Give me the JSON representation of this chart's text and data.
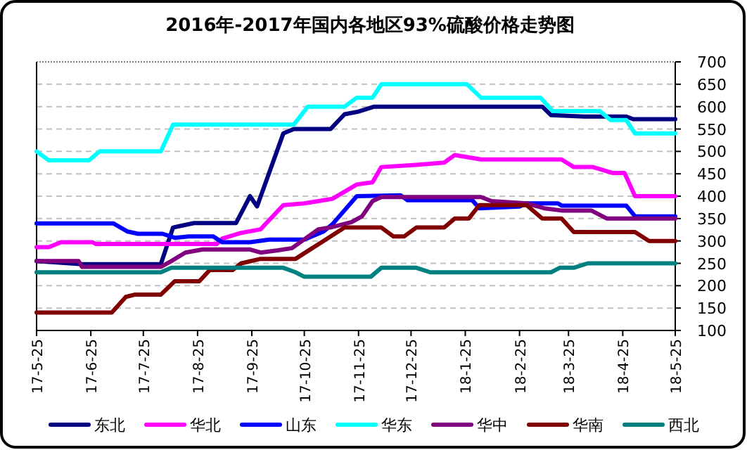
{
  "chart_data": {
    "type": "line",
    "title": "2016年-2017年国内各地区93%硫酸价格走势图",
    "xlim": [
      "2017-05-25",
      "2018-05-25"
    ],
    "xticks": [
      {
        "value": "2017-05-25",
        "label": "17-5-25"
      },
      {
        "value": "2017-06-25",
        "label": "17-6-25"
      },
      {
        "value": "2017-07-25",
        "label": "17-7-25"
      },
      {
        "value": "2017-08-25",
        "label": "17-8-25"
      },
      {
        "value": "2017-09-25",
        "label": "17-9-25"
      },
      {
        "value": "2017-10-25",
        "label": "17-10-25"
      },
      {
        "value": "2017-11-25",
        "label": "17-11-25"
      },
      {
        "value": "2017-12-25",
        "label": "17-12-25"
      },
      {
        "value": "2018-01-25",
        "label": "18-1-25"
      },
      {
        "value": "2018-02-25",
        "label": "18-2-25"
      },
      {
        "value": "2018-03-25",
        "label": "18-3-25"
      },
      {
        "value": "2018-04-25",
        "label": "18-4-25"
      },
      {
        "value": "2018-05-25",
        "label": "18-5-25"
      }
    ],
    "ylim": [
      100,
      700
    ],
    "yticks": [
      100,
      150,
      200,
      250,
      300,
      350,
      400,
      450,
      500,
      550,
      600,
      650,
      700
    ],
    "grid": "y",
    "legend": "bottom",
    "marker": "none",
    "line_style": "solid",
    "series": [
      {
        "name": "东北",
        "color": "#000080",
        "x": [
          "2017-05-25",
          "2017-06-20",
          "2017-08-04",
          "2017-08-11",
          "2017-08-23",
          "2017-09-16",
          "2017-09-24",
          "2017-09-28",
          "2017-10-13",
          "2017-10-19",
          "2017-11-09",
          "2017-11-17",
          "2017-11-25",
          "2017-12-04",
          "2018-03-10",
          "2018-03-15",
          "2018-04-03",
          "2018-04-27",
          "2018-05-01",
          "2018-05-25"
        ],
        "values": [
          255,
          248,
          248,
          330,
          340,
          340,
          400,
          377,
          540,
          550,
          550,
          583,
          589,
          600,
          600,
          581,
          578,
          578,
          572,
          572
        ]
      },
      {
        "name": "华北",
        "color": "#ff00ff",
        "x": [
          "2017-05-25",
          "2017-06-01",
          "2017-06-08",
          "2017-06-26",
          "2017-06-28",
          "2017-09-05",
          "2017-09-08",
          "2017-09-19",
          "2017-09-30",
          "2017-10-13",
          "2017-10-25",
          "2017-11-10",
          "2017-11-24",
          "2017-12-03",
          "2017-12-08",
          "2017-12-28",
          "2018-01-13",
          "2018-01-19",
          "2018-02-03",
          "2018-03-21",
          "2018-03-28",
          "2018-04-08",
          "2018-04-19",
          "2018-04-26",
          "2018-05-02",
          "2018-05-25"
        ],
        "values": [
          286,
          286,
          297,
          297,
          293,
          293,
          305,
          318,
          326,
          380,
          384,
          394,
          426,
          431,
          465,
          470,
          475,
          492,
          482,
          482,
          465,
          465,
          452,
          452,
          400,
          400
        ]
      },
      {
        "name": "山东",
        "color": "#0000ff",
        "x": [
          "2017-05-25",
          "2017-07-08",
          "2017-07-16",
          "2017-07-22",
          "2017-08-05",
          "2017-08-12",
          "2017-08-20",
          "2017-09-03",
          "2017-09-08",
          "2017-09-24",
          "2017-10-05",
          "2017-10-25",
          "2017-11-05",
          "2017-11-10",
          "2017-11-24",
          "2017-12-19",
          "2017-12-23",
          "2018-01-29",
          "2018-02-02",
          "2018-02-25",
          "2018-03-01",
          "2018-03-19",
          "2018-03-21",
          "2018-04-27",
          "2018-05-02",
          "2018-05-25"
        ],
        "values": [
          339,
          339,
          321,
          316,
          316,
          307,
          310,
          310,
          297,
          297,
          303,
          303,
          321,
          337,
          400,
          402,
          391,
          391,
          373,
          377,
          384,
          384,
          379,
          379,
          355,
          355
        ]
      },
      {
        "name": "华东",
        "color": "#00ffff",
        "x": [
          "2017-05-25",
          "2017-06-01",
          "2017-06-24",
          "2017-06-30",
          "2017-08-04",
          "2017-08-11",
          "2017-10-19",
          "2017-10-27",
          "2017-11-17",
          "2017-11-24",
          "2017-12-03",
          "2017-12-08",
          "2018-01-26",
          "2018-02-03",
          "2018-03-09",
          "2018-03-16",
          "2018-04-12",
          "2018-04-18",
          "2018-04-27",
          "2018-05-02",
          "2018-05-25"
        ],
        "values": [
          500,
          480,
          480,
          500,
          500,
          560,
          560,
          600,
          600,
          620,
          620,
          650,
          650,
          620,
          620,
          590,
          590,
          570,
          570,
          540,
          540
        ]
      },
      {
        "name": "华中",
        "color": "#800080",
        "x": [
          "2017-05-25",
          "2017-06-18",
          "2017-06-20",
          "2017-08-04",
          "2017-08-10",
          "2017-08-18",
          "2017-08-28",
          "2017-09-24",
          "2017-09-30",
          "2017-10-10",
          "2017-10-18",
          "2017-11-02",
          "2017-11-10",
          "2017-11-21",
          "2017-11-27",
          "2017-12-03",
          "2017-12-08",
          "2018-02-03",
          "2018-02-09",
          "2018-03-01",
          "2018-03-11",
          "2018-03-21",
          "2018-04-07",
          "2018-04-16",
          "2018-05-25"
        ],
        "values": [
          255,
          255,
          242,
          242,
          255,
          274,
          281,
          281,
          274,
          279,
          284,
          326,
          331,
          342,
          355,
          389,
          398,
          398,
          389,
          384,
          373,
          368,
          368,
          350,
          350
        ]
      },
      {
        "name": "华南",
        "color": "#800000",
        "x": [
          "2017-05-25",
          "2017-07-07",
          "2017-07-15",
          "2017-07-20",
          "2017-08-04",
          "2017-08-12",
          "2017-08-26",
          "2017-09-01",
          "2017-09-14",
          "2017-09-19",
          "2017-09-30",
          "2017-10-20",
          "2017-10-28",
          "2017-11-05",
          "2017-11-17",
          "2017-12-08",
          "2017-12-15",
          "2017-12-21",
          "2017-12-28",
          "2018-01-13",
          "2018-01-19",
          "2018-01-27",
          "2018-02-02",
          "2018-03-01",
          "2018-03-10",
          "2018-03-21",
          "2018-03-28",
          "2018-05-02",
          "2018-05-10",
          "2018-05-25"
        ],
        "values": [
          140,
          140,
          175,
          180,
          180,
          210,
          210,
          235,
          235,
          250,
          260,
          260,
          280,
          300,
          330,
          330,
          310,
          310,
          330,
          330,
          350,
          350,
          380,
          380,
          350,
          350,
          320,
          320,
          300,
          300
        ]
      },
      {
        "name": "西北",
        "color": "#008080",
        "x": [
          "2017-05-25",
          "2017-08-04",
          "2017-08-10",
          "2017-10-13",
          "2017-10-20",
          "2017-10-25",
          "2017-12-02",
          "2017-12-08",
          "2017-12-28",
          "2018-01-05",
          "2018-03-15",
          "2018-03-20",
          "2018-03-28",
          "2018-04-05",
          "2018-05-25"
        ],
        "values": [
          230,
          230,
          240,
          240,
          230,
          220,
          220,
          240,
          240,
          230,
          230,
          240,
          240,
          250,
          250
        ]
      }
    ]
  }
}
